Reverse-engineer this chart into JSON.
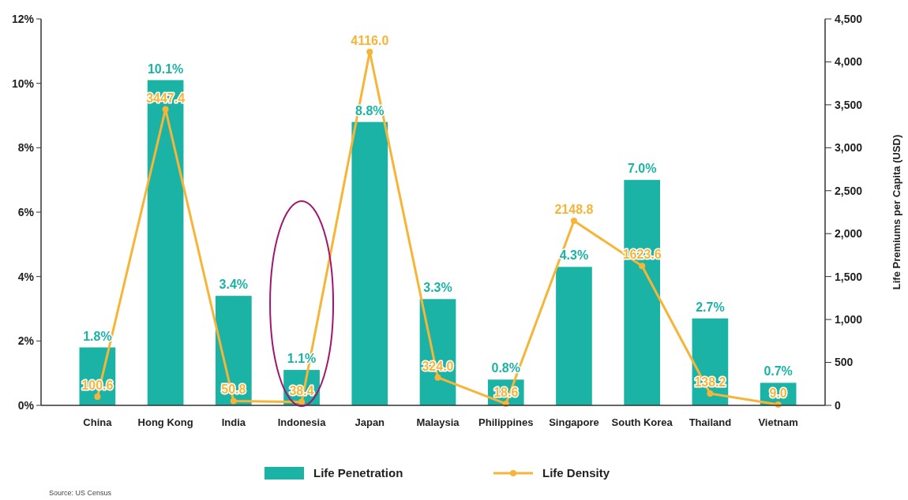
{
  "chart_data": {
    "type": "bar",
    "categories": [
      "China",
      "Hong Kong",
      "India",
      "Indonesia",
      "Japan",
      "Malaysia",
      "Philippines",
      "Singapore",
      "South Korea",
      "Thailand",
      "Vietnam"
    ],
    "series": [
      {
        "name": "Life Penetration",
        "color": "#1ab3a6",
        "values": [
          1.8,
          10.1,
          3.4,
          1.1,
          8.8,
          3.3,
          0.8,
          4.3,
          7.0,
          2.7,
          0.7
        ],
        "value_labels": [
          "1.8%",
          "10.1%",
          "3.4%",
          "1.1%",
          "8.8%",
          "3.3%",
          "0.8%",
          "4.3%",
          "7.0%",
          "2.7%",
          "0.7%"
        ]
      },
      {
        "name": "Life Density",
        "type": "line",
        "axis": "y2",
        "color": "#f7b538",
        "values": [
          100.6,
          3447.4,
          50.8,
          38.4,
          4116.0,
          324.0,
          18.6,
          2148.8,
          1623.6,
          138.2,
          9.0
        ],
        "value_labels": [
          "100.6",
          "3447.4",
          "50.8",
          "38.4",
          "4116.0",
          "324.0",
          "18.6",
          "2148.8",
          "1623.6",
          "138.2",
          "9.0"
        ]
      }
    ],
    "ylim": [
      0,
      12
    ],
    "yticks": [
      {
        "value": 0,
        "label": "0%"
      },
      {
        "value": 2,
        "label": "2%"
      },
      {
        "value": 4,
        "label": "4%"
      },
      {
        "value": 6,
        "label": "6%"
      },
      {
        "value": 8,
        "label": "8%"
      },
      {
        "value": 10,
        "label": "10%"
      },
      {
        "value": 12,
        "label": "12%"
      }
    ],
    "y2lim": [
      0,
      4500
    ],
    "y2ticks": [
      0,
      500,
      {
        "value": 1000,
        "label": "1,000"
      },
      {
        "value": 1500,
        "label": "1,500"
      },
      {
        "value": 2000,
        "label": "2,000"
      },
      {
        "value": 2500,
        "label": "2,500"
      },
      {
        "value": 3000,
        "label": "3,000"
      },
      {
        "value": 3500,
        "label": "3,500"
      },
      {
        "value": 4000,
        "label": "4,000"
      },
      {
        "value": 4500,
        "label": "4,500"
      }
    ],
    "y2label": "Life Premiums per Capita (USD)",
    "marker": "circle",
    "line_style": "solid",
    "legend": "bottom",
    "annotations": [
      "Source: US Census"
    ]
  }
}
